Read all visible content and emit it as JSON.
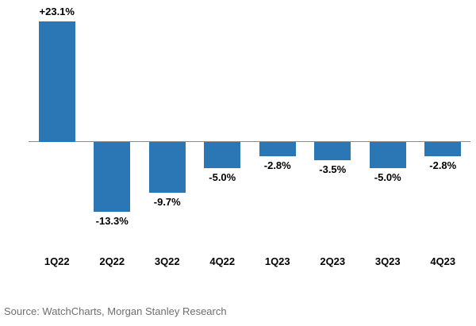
{
  "chart_data": {
    "type": "bar",
    "categories": [
      "1Q22",
      "2Q22",
      "3Q22",
      "4Q22",
      "1Q23",
      "2Q23",
      "3Q23",
      "4Q23"
    ],
    "values": [
      23.1,
      -13.3,
      -9.7,
      -5.0,
      -2.8,
      -3.5,
      -5.0,
      -2.8
    ],
    "value_labels": [
      "+23.1%",
      "-13.3%",
      "-9.7%",
      "-5.0%",
      "-2.8%",
      "-3.5%",
      "-5.0%",
      "-2.8%"
    ],
    "title": "",
    "xlabel": "",
    "ylabel": "",
    "ylim": [
      -15,
      25
    ],
    "grid": false,
    "legend": null,
    "bar_color": "#2b77b5",
    "axis_line_color": "#8c8c8c",
    "value_label_color": "#000000",
    "category_label_color": "#000000"
  },
  "source_note": {
    "text": "Source: WatchCharts, Morgan Stanley Research",
    "color": "#6e6e6e"
  }
}
